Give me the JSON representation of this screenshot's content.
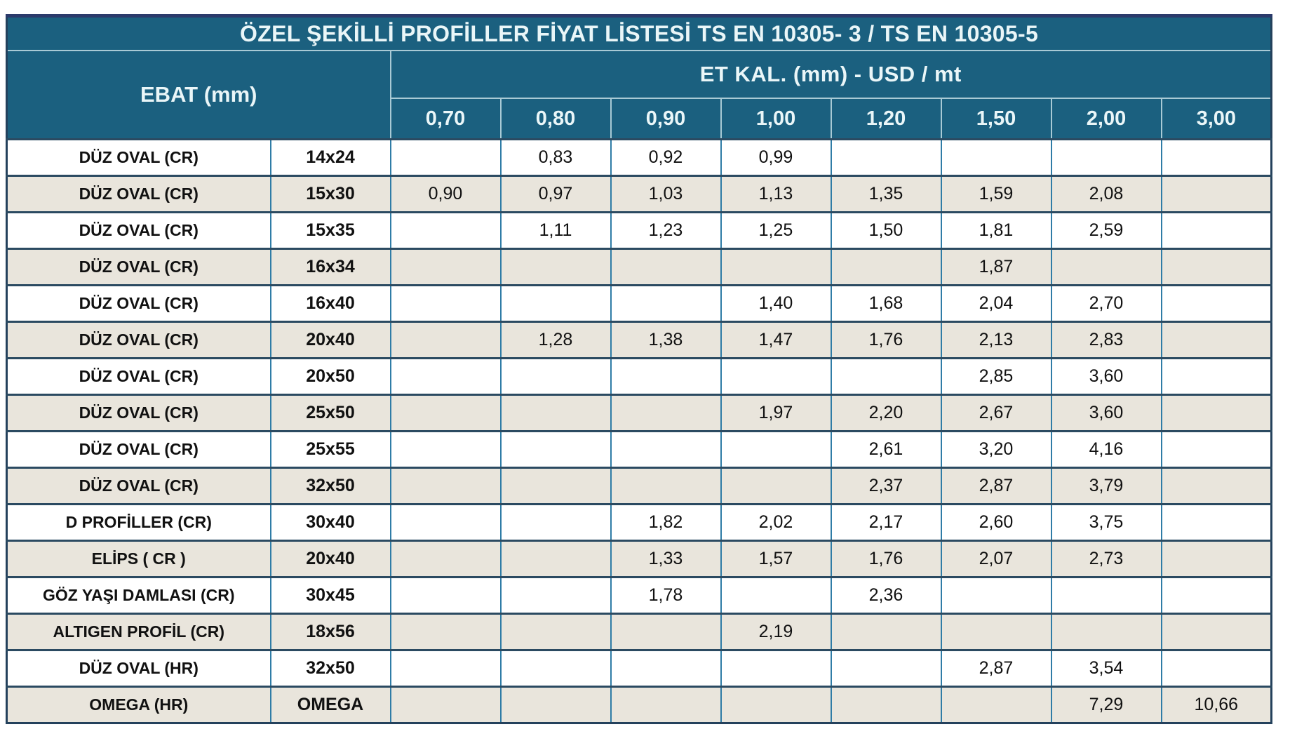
{
  "title": "ÖZEL ŞEKİLLİ PROFİLLER FİYAT LİSTESİ  TS EN 10305- 3 / TS EN 10305-5",
  "header": {
    "ebat_label": "EBAT (mm)",
    "etkal_label": "ET KAL. (mm)  -   USD / mt",
    "thickness_columns": [
      "0,70",
      "0,80",
      "0,90",
      "1,00",
      "1,20",
      "1,50",
      "2,00",
      "3,00"
    ]
  },
  "rows": [
    {
      "name": "DÜZ OVAL (CR)",
      "size": "14x24",
      "prices": [
        "",
        "0,83",
        "0,92",
        "0,99",
        "",
        "",
        "",
        ""
      ]
    },
    {
      "name": "DÜZ OVAL (CR)",
      "size": "15x30",
      "prices": [
        "0,90",
        "0,97",
        "1,03",
        "1,13",
        "1,35",
        "1,59",
        "2,08",
        ""
      ]
    },
    {
      "name": "DÜZ OVAL (CR)",
      "size": "15x35",
      "prices": [
        "",
        "1,11",
        "1,23",
        "1,25",
        "1,50",
        "1,81",
        "2,59",
        ""
      ]
    },
    {
      "name": "DÜZ OVAL (CR)",
      "size": "16x34",
      "prices": [
        "",
        "",
        "",
        "",
        "",
        "1,87",
        "",
        ""
      ]
    },
    {
      "name": "DÜZ OVAL (CR)",
      "size": "16x40",
      "prices": [
        "",
        "",
        "",
        "1,40",
        "1,68",
        "2,04",
        "2,70",
        ""
      ]
    },
    {
      "name": "DÜZ OVAL (CR)",
      "size": "20x40",
      "prices": [
        "",
        "1,28",
        "1,38",
        "1,47",
        "1,76",
        "2,13",
        "2,83",
        ""
      ]
    },
    {
      "name": "DÜZ OVAL (CR)",
      "size": "20x50",
      "prices": [
        "",
        "",
        "",
        "",
        "",
        "2,85",
        "3,60",
        ""
      ]
    },
    {
      "name": "DÜZ OVAL (CR)",
      "size": "25x50",
      "prices": [
        "",
        "",
        "",
        "1,97",
        "2,20",
        "2,67",
        "3,60",
        ""
      ]
    },
    {
      "name": "DÜZ OVAL (CR)",
      "size": "25x55",
      "prices": [
        "",
        "",
        "",
        "",
        "2,61",
        "3,20",
        "4,16",
        ""
      ]
    },
    {
      "name": "DÜZ OVAL (CR)",
      "size": "32x50",
      "prices": [
        "",
        "",
        "",
        "",
        "2,37",
        "2,87",
        "3,79",
        ""
      ]
    },
    {
      "name": "D PROFİLLER (CR)",
      "size": "30x40",
      "prices": [
        "",
        "",
        "1,82",
        "2,02",
        "2,17",
        "2,60",
        "3,75",
        ""
      ]
    },
    {
      "name": "ELİPS ( CR )",
      "size": "20x40",
      "prices": [
        "",
        "",
        "1,33",
        "1,57",
        "1,76",
        "2,07",
        "2,73",
        ""
      ]
    },
    {
      "name": "GÖZ YAŞI DAMLASI (CR)",
      "size": "30x45",
      "prices": [
        "",
        "",
        "1,78",
        "",
        "2,36",
        "",
        "",
        ""
      ]
    },
    {
      "name": "ALTIGEN PROFİL (CR)",
      "size": "18x56",
      "prices": [
        "",
        "",
        "",
        "2,19",
        "",
        "",
        "",
        ""
      ]
    },
    {
      "name": "DÜZ OVAL (HR)",
      "size": "32x50",
      "prices": [
        "",
        "",
        "",
        "",
        "",
        "2,87",
        "3,54",
        ""
      ]
    },
    {
      "name": "OMEGA (HR)",
      "size": "OMEGA",
      "prices": [
        "",
        "",
        "",
        "",
        "",
        "",
        "7,29",
        "10,66"
      ]
    }
  ],
  "colors": {
    "header_teal": "#1B607F",
    "header_text": "#EAF6F8",
    "header_line": "#A9CAD5",
    "grid_blue": "#2F7CA6",
    "row_separator": "#2B4A61",
    "row_beige": "#E9E5DC",
    "frame_navy": "#24415C",
    "top_navy": "#2B3A6B"
  }
}
